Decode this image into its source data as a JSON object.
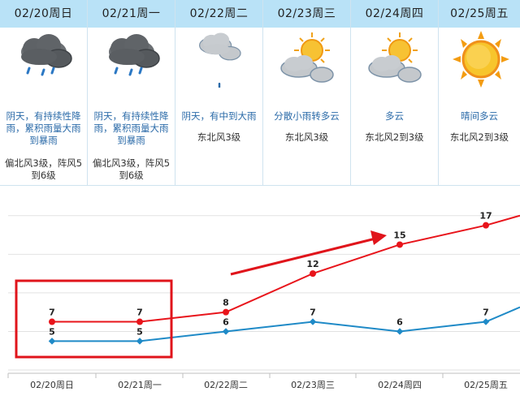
{
  "days": [
    {
      "date": "02/20周日",
      "desc": "阴天，有持续性降雨，累积雨量大雨到暴雨",
      "wind": "偏北风3级，阵风5到6级",
      "icon": "rain-cloud-icon"
    },
    {
      "date": "02/21周一",
      "desc": "阴天，有持续性降雨，累积雨量大雨到暴雨",
      "wind": "偏北风3级，阵风5到6级",
      "icon": "rain-cloud-icon"
    },
    {
      "date": "02/22周二",
      "desc": "阴天，有中到大雨",
      "wind": "东北风3级",
      "icon": "overcast-drizzle-icon"
    },
    {
      "date": "02/23周三",
      "desc": "分散小雨转多云",
      "wind": "东北风3级",
      "icon": "partly-cloudy-icon"
    },
    {
      "date": "02/24周四",
      "desc": "多云",
      "wind": "东北风2到3级",
      "icon": "partly-cloudy-icon"
    },
    {
      "date": "02/25周五",
      "desc": "晴间多云",
      "wind": "东北风2到3级",
      "icon": "sunny-icon"
    }
  ],
  "chart_data": {
    "type": "line",
    "categories": [
      "02/20周日",
      "02/21周一",
      "02/22周二",
      "02/23周三",
      "02/24周四",
      "02/25周五"
    ],
    "series": [
      {
        "values": [
          7,
          7,
          8,
          12,
          15,
          17
        ],
        "color": "#e8141b"
      },
      {
        "values": [
          5,
          5,
          6,
          7,
          6,
          7
        ],
        "color": "#1f8ac7"
      }
    ],
    "ylim": [
      2,
      20
    ],
    "grid": true,
    "annotations": [
      "red-rectangle-highlight",
      "red-arrow-trend"
    ]
  }
}
